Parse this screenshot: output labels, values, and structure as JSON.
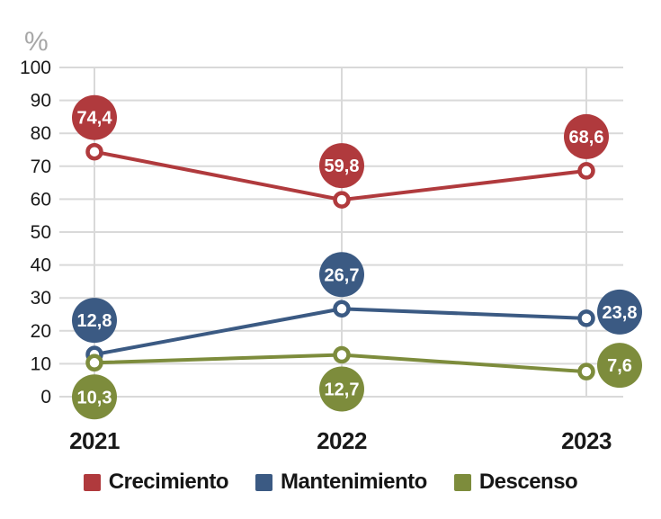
{
  "chart_data": {
    "type": "line",
    "title": "",
    "ylabel": "%",
    "xlabel": "",
    "categories": [
      "2021",
      "2022",
      "2023"
    ],
    "y_ticks": [
      0,
      10,
      20,
      30,
      40,
      50,
      60,
      70,
      80,
      90,
      100
    ],
    "ylim": [
      0,
      100
    ],
    "grid": true,
    "legend_position": "bottom",
    "marker_style": "open-circle",
    "series": [
      {
        "name": "Crecimiento",
        "color": "#b03a3d",
        "values": [
          74.4,
          59.8,
          68.6
        ],
        "labels": [
          "74,4",
          "59,8",
          "68,6"
        ],
        "label_placement": [
          "above",
          "above",
          "above"
        ]
      },
      {
        "name": "Mantenimiento",
        "color": "#3b5a83",
        "values": [
          12.8,
          26.7,
          23.8
        ],
        "labels": [
          "12,8",
          "26,7",
          "23,8"
        ],
        "label_placement": [
          "above",
          "above",
          "right"
        ]
      },
      {
        "name": "Descenso",
        "color": "#7d8c3c",
        "values": [
          10.3,
          12.7,
          7.6
        ],
        "labels": [
          "10,3",
          "12,7",
          "7,6"
        ],
        "label_placement": [
          "below",
          "below",
          "right"
        ]
      }
    ]
  },
  "colors": {
    "background": "#ffffff",
    "gridline": "#d9d9d9",
    "axis_text": "#191919",
    "unit_label": "#a7a7a7",
    "bubble_text": "#ffffff"
  }
}
